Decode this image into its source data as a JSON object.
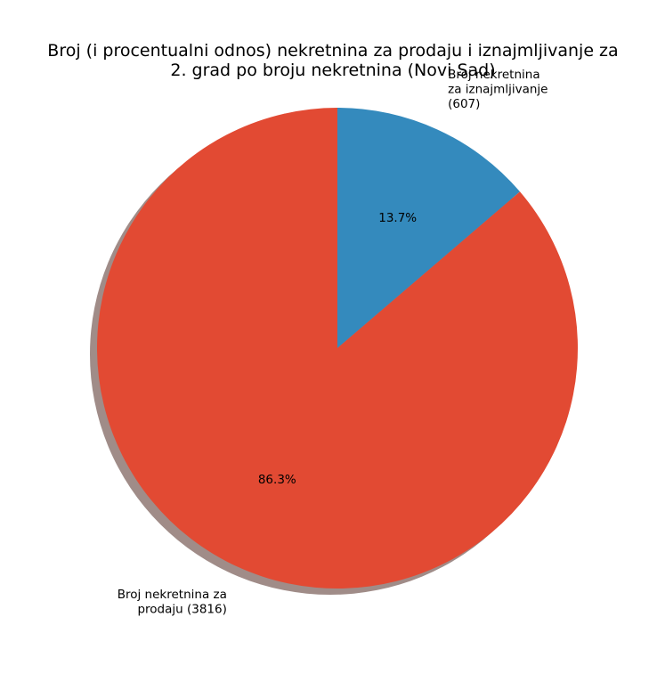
{
  "chart_data": {
    "type": "pie",
    "title": "Broj (i procentualni odnos) nekretnina za prodaju i iznajmljivanje za 2. grad po broju nekretnina (Novi Sad)",
    "title_lines": [
      "Broj (i procentualni odnos) nekretnina za prodaju i iznajmljivanje za",
      "2. grad po broju nekretnina (Novi Sad)"
    ],
    "slices": [
      {
        "label": "Broj nekretnina za iznajmljivanje (607)",
        "label_lines": [
          "Broj nekretnina",
          "za iznajmljivanje",
          "(607)"
        ],
        "value": 607,
        "percent_label": "13.7%",
        "color": "#348abd"
      },
      {
        "label": "Broj nekretnina za prodaju (3816)",
        "label_lines": [
          "Broj nekretnina za",
          "prodaju (3816)"
        ],
        "value": 3816,
        "percent_label": "86.3%",
        "color": "#e24a33"
      }
    ],
    "start_angle_deg": 90,
    "direction": "clockwise",
    "shadow": true,
    "shadow_color": "#a08c88"
  }
}
